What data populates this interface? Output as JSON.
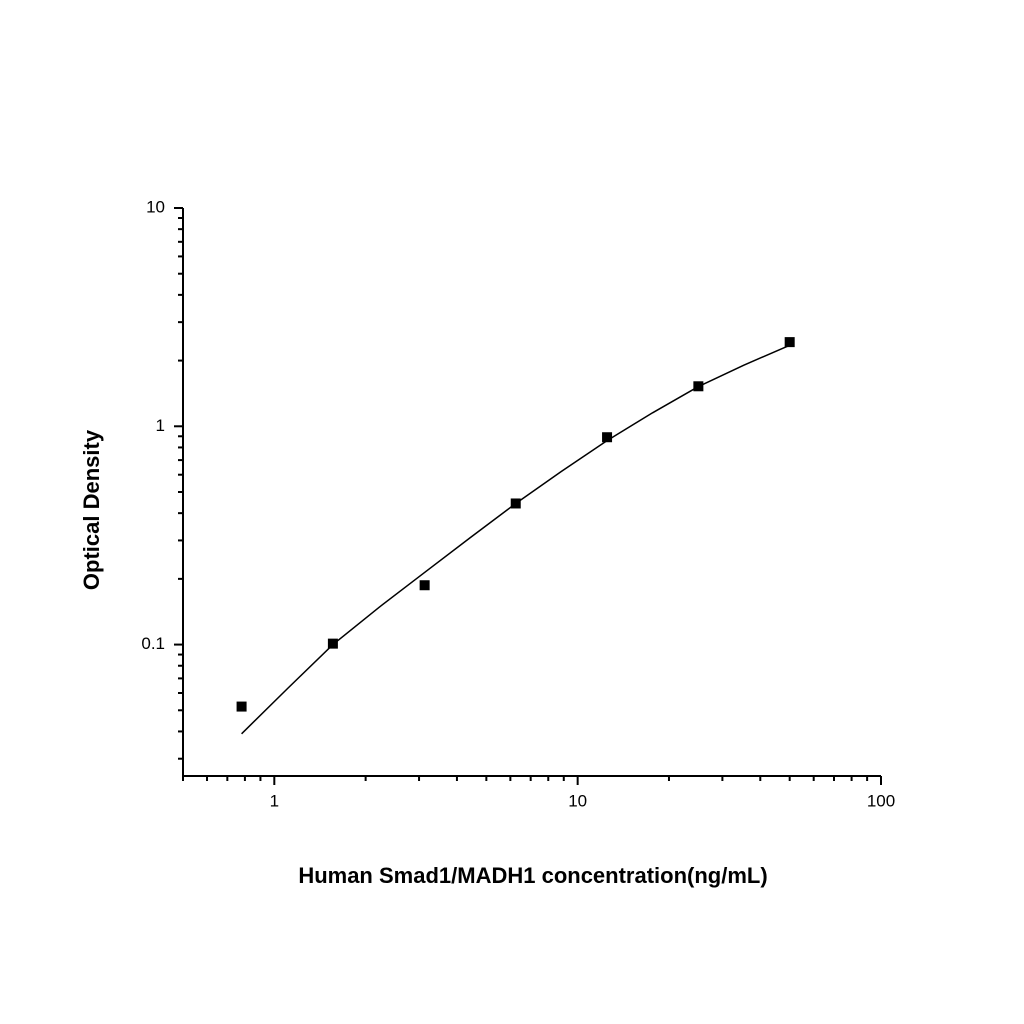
{
  "chart_data": {
    "type": "scatter",
    "xlabel": "Human Smad1/MADH1 concentration(ng/mL)",
    "ylabel": "Optical Density",
    "xscale": "log",
    "yscale": "log",
    "xlim": [
      0.5,
      100
    ],
    "ylim": [
      0.025,
      10
    ],
    "xticks": [
      1,
      10,
      100
    ],
    "yticks": [
      0.1,
      1,
      10
    ],
    "xminorticks": [
      0.5,
      0.6,
      0.7,
      0.8,
      0.9,
      2,
      3,
      4,
      5,
      6,
      7,
      8,
      9,
      20,
      30,
      40,
      50,
      60,
      70,
      80,
      90
    ],
    "yminorticks": [
      0.03,
      0.04,
      0.05,
      0.06,
      0.07,
      0.08,
      0.09,
      0.2,
      0.3,
      0.4,
      0.5,
      0.6,
      0.7,
      0.8,
      0.9,
      2,
      3,
      4,
      5,
      6,
      7,
      8,
      9
    ],
    "series": [
      {
        "mode": "markers",
        "color": "#000000",
        "x": [
          0.78,
          1.56,
          3.13,
          6.25,
          12.5,
          25,
          50
        ],
        "values": [
          0.052,
          0.101,
          0.187,
          0.443,
          0.891,
          1.525,
          2.43
        ]
      },
      {
        "mode": "line",
        "color": "#000000",
        "x": [
          0.78,
          1.107,
          1.56,
          2.213,
          3.13,
          4.426,
          6.25,
          8.83,
          12.5,
          17.66,
          25,
          35.3,
          50
        ],
        "values": [
          0.039,
          0.063,
          0.1,
          0.148,
          0.214,
          0.309,
          0.443,
          0.621,
          0.86,
          1.153,
          1.52,
          1.905,
          2.35
        ]
      }
    ]
  }
}
